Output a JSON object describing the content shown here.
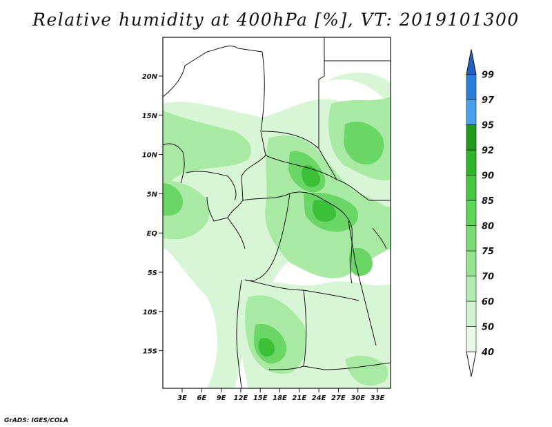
{
  "title": "Relative humidity at 400hPa [%], VT: 2019101300",
  "credit": "GrADS: IGES/COLA",
  "map": {
    "lat_labels": [
      "20N",
      "15N",
      "10N",
      "5N",
      "EQ",
      "5S",
      "10S",
      "15S"
    ],
    "lon_labels": [
      "3E",
      "6E",
      "9E",
      "12E",
      "15E",
      "18E",
      "21E",
      "24E",
      "27E",
      "30E",
      "33E"
    ]
  },
  "colorbar": {
    "levels": [
      "40",
      "50",
      "60",
      "70",
      "75",
      "80",
      "85",
      "90",
      "92",
      "95",
      "97",
      "99"
    ],
    "colors": [
      "#eaf8e8",
      "#d2f3cf",
      "#b4ecb0",
      "#94e38e",
      "#78dc72",
      "#5ed458",
      "#44c63e",
      "#2fb52a",
      "#1f9a1c",
      "#4aa0ee",
      "#2a7fd8",
      "#1f62c0"
    ]
  },
  "field_colors": {
    "light": "#d8f5d5",
    "medium": "#a8eaa3",
    "strong": "#6ad665",
    "deep": "#3cc038"
  }
}
